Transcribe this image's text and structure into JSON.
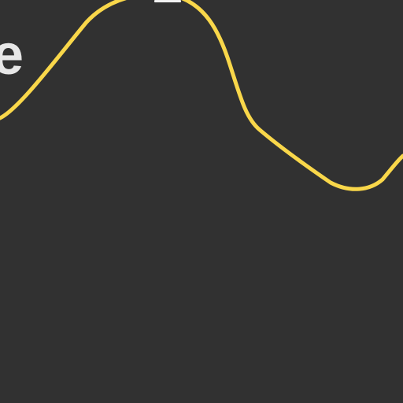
{
  "canvas": {
    "background_color": "#313131"
  },
  "title_fragment": {
    "text": "e",
    "color": "#e7e7e7"
  },
  "top_marker": {
    "color": "#f2f2f2"
  },
  "wave": {
    "stroke_color": "#f9d74a"
  }
}
